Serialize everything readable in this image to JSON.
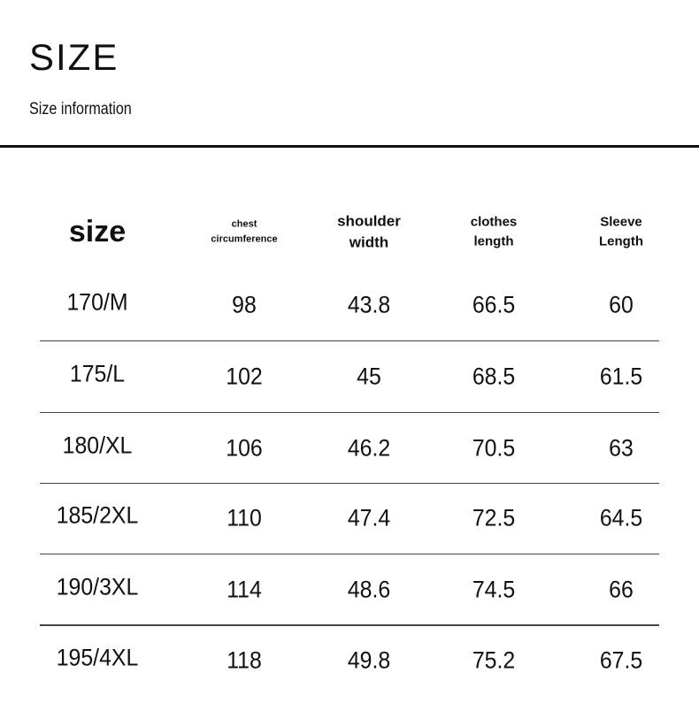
{
  "header": {
    "title": "SIZE",
    "subtitle": "Size information"
  },
  "table": {
    "columns": [
      [
        "size"
      ],
      [
        "chest",
        "circumference"
      ],
      [
        "shoulder",
        "width"
      ],
      [
        "clothes",
        "length"
      ],
      [
        "Sleeve",
        "Length"
      ]
    ],
    "rows": [
      [
        "170/M",
        "98",
        "43.8",
        "66.5",
        "60"
      ],
      [
        "175/L",
        "102",
        "45",
        "68.5",
        "61.5"
      ],
      [
        "180/XL",
        "106",
        "46.2",
        "70.5",
        "63"
      ],
      [
        "185/2XL",
        "110",
        "47.4",
        "72.5",
        "64.5"
      ],
      [
        "190/3XL",
        "114",
        "48.6",
        "74.5",
        "66"
      ],
      [
        "195/4XL",
        "118",
        "49.8",
        "75.2",
        "67.5"
      ]
    ]
  }
}
